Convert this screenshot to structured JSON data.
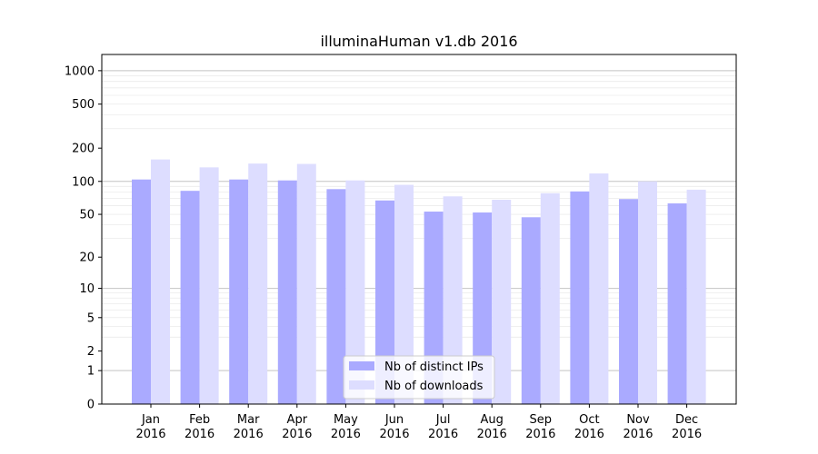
{
  "chart_data": {
    "type": "bar",
    "title": "illuminaHuman v1.db 2016",
    "xlabel": "",
    "ylabel": "",
    "y_scale": "log(1+y)",
    "ylim": [
      0,
      1400
    ],
    "y_ticks": [
      0,
      1,
      2,
      5,
      10,
      20,
      50,
      100,
      200,
      500,
      1000
    ],
    "categories": [
      "Jan\n2016",
      "Feb\n2016",
      "Mar\n2016",
      "Apr\n2016",
      "May\n2016",
      "Jun\n2016",
      "Jul\n2016",
      "Aug\n2016",
      "Sep\n2016",
      "Oct\n2016",
      "Nov\n2016",
      "Dec\n2016"
    ],
    "series": [
      {
        "name": "Nb of distinct IPs",
        "color": "#aaaaff",
        "values": [
          104,
          82,
          104,
          102,
          85,
          67,
          53,
          52,
          47,
          81,
          69,
          63
        ]
      },
      {
        "name": "Nb of downloads",
        "color": "#ddddff",
        "values": [
          158,
          134,
          145,
          144,
          102,
          93,
          73,
          68,
          78,
          118,
          100,
          84
        ]
      }
    ],
    "legend_position": "bottom-center",
    "grid": true
  }
}
